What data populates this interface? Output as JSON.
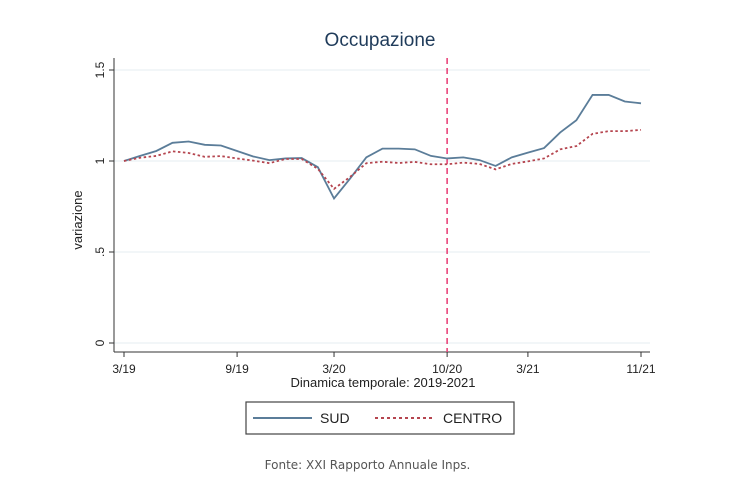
{
  "chart_data": {
    "type": "line",
    "title": "Occupazione",
    "xlabel": "Dinamica temporale: 2019-2021",
    "ylabel": "variazione",
    "ylim": [
      0,
      1.5
    ],
    "yticks": [
      {
        "v": 0,
        "label": "0"
      },
      {
        "v": 0.5,
        "label": ".5"
      },
      {
        "v": 1,
        "label": "1"
      },
      {
        "v": 1.5,
        "label": "1.5"
      }
    ],
    "xticks": [
      {
        "i": 0,
        "label": "3/19"
      },
      {
        "i": 7,
        "label": "9/19"
      },
      {
        "i": 13,
        "label": "3/20"
      },
      {
        "i": 20,
        "label": "10/20"
      },
      {
        "i": 25,
        "label": "3/21"
      },
      {
        "i": 32,
        "label": "11/21"
      }
    ],
    "vline": {
      "i": 20,
      "color": "#e8457a"
    },
    "grid": true,
    "legend_position": "bottom",
    "series": [
      {
        "name": "SUD",
        "color": "#5b7d99",
        "style": "solid",
        "values": [
          1.0,
          1.028,
          1.055,
          1.1,
          1.107,
          1.089,
          1.085,
          1.055,
          1.025,
          1.005,
          1.014,
          1.016,
          0.966,
          0.794,
          0.904,
          1.02,
          1.068,
          1.068,
          1.064,
          1.028,
          1.014,
          1.02,
          1.005,
          0.973,
          1.02,
          1.046,
          1.071,
          1.157,
          1.224,
          1.363,
          1.363,
          1.327,
          1.317
        ]
      },
      {
        "name": "CENTRO",
        "color": "#b5454f",
        "style": "dotted",
        "values": [
          1.0,
          1.018,
          1.028,
          1.053,
          1.044,
          1.023,
          1.027,
          1.014,
          1.002,
          0.988,
          1.011,
          1.011,
          0.957,
          0.847,
          0.913,
          0.988,
          0.996,
          0.989,
          0.995,
          0.982,
          0.982,
          0.991,
          0.984,
          0.954,
          0.984,
          0.998,
          1.014,
          1.064,
          1.082,
          1.149,
          1.164,
          1.164,
          1.171
        ]
      }
    ]
  },
  "caption": "Fonte: XXI Rapporto Annuale Inps."
}
